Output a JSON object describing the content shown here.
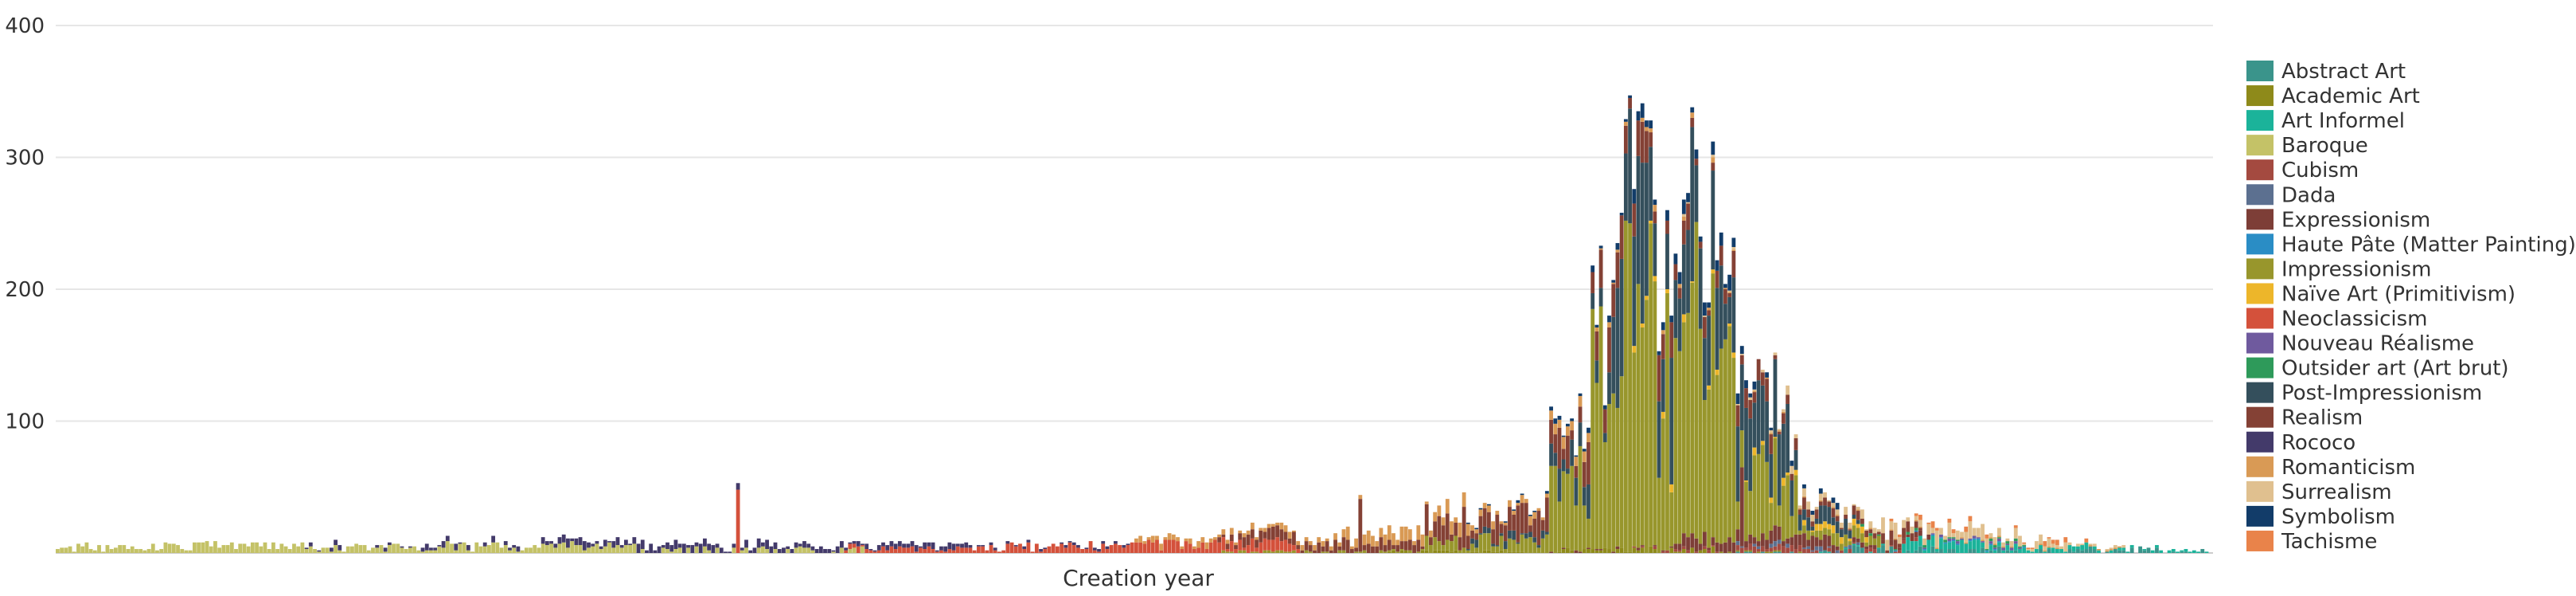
{
  "chart_data": {
    "type": "bar",
    "stacked": true,
    "title": "",
    "xlabel": "Creation year",
    "ylabel": "",
    "ylim": [
      0,
      400
    ],
    "y_ticks": [
      "100",
      "200",
      "300",
      "400"
    ],
    "xlim": [
      1500,
      2019
    ],
    "grid": true,
    "legend_position": "right",
    "series": [
      {
        "name": "Abstract Art",
        "color": "#3a948b",
        "spec": [
          [
            1905,
            1925,
            0.5
          ],
          [
            1925,
            1975,
            2.5
          ],
          [
            1975,
            2019,
            2
          ]
        ]
      },
      {
        "name": "Academic Art",
        "color": "#8e8a1a",
        "spec": [
          [
            1820,
            1860,
            1
          ],
          [
            1860,
            1900,
            2
          ],
          [
            1900,
            1925,
            0.5
          ]
        ]
      },
      {
        "name": "Art Informel",
        "color": "#1bb39a",
        "spec": [
          [
            1925,
            1945,
            0.5
          ],
          [
            1945,
            1965,
            6
          ],
          [
            1965,
            1990,
            3
          ],
          [
            1990,
            2019,
            1
          ]
        ]
      },
      {
        "name": "Baroque",
        "color": "#c4c267",
        "spec": [
          [
            1500,
            1560,
            5
          ],
          [
            1560,
            1590,
            4
          ],
          [
            1590,
            1640,
            5
          ],
          [
            1640,
            1700,
            2
          ]
        ]
      },
      {
        "name": "Cubism",
        "color": "#a44a40",
        "spec": [
          [
            1880,
            1905,
            1
          ],
          [
            1905,
            1925,
            3
          ],
          [
            1925,
            1950,
            1.5
          ]
        ]
      },
      {
        "name": "Dada",
        "color": "#5c7090",
        "spec": [
          [
            1905,
            1935,
            1.5
          ]
        ]
      },
      {
        "name": "Expressionism",
        "color": "#7d3e37",
        "spec": [
          [
            1860,
            1890,
            1
          ],
          [
            1890,
            1930,
            7
          ],
          [
            1930,
            1955,
            2
          ]
        ]
      },
      {
        "name": "Haute Pâte (Matter Painting)",
        "color": "#2a8dc5",
        "spec": [
          [
            1940,
            1975,
            0.5
          ]
        ]
      },
      {
        "name": "Impressionism",
        "color": "#98962c",
        "spec": [
          [
            1780,
            1830,
            1
          ],
          [
            1830,
            1860,
            8
          ],
          [
            1860,
            1870,
            50
          ],
          [
            1870,
            1890,
            160
          ],
          [
            1890,
            1905,
            110
          ],
          [
            1905,
            1920,
            40
          ],
          [
            1920,
            1940,
            6
          ]
        ]
      },
      {
        "name": "Naïve Art (Primitivism)",
        "color": "#edb62a",
        "spec": [
          [
            1880,
            1940,
            2.5
          ]
        ]
      },
      {
        "name": "Neoclassicism",
        "color": "#d4513b",
        "spec": [
          [
            1690,
            1720,
            3
          ],
          [
            1720,
            1760,
            5
          ],
          [
            1760,
            1800,
            6
          ]
        ]
      },
      {
        "name": "Nouveau Réalisme",
        "color": "#6f5a9e",
        "spec": [
          [
            1950,
            1975,
            1
          ]
        ]
      },
      {
        "name": "Outsider art (Art brut)",
        "color": "#2e9a5a",
        "spec": [
          [
            1935,
            1975,
            1
          ]
        ]
      },
      {
        "name": "Post-Impressionism",
        "color": "#344f5c",
        "spec": [
          [
            1840,
            1860,
            4
          ],
          [
            1860,
            1875,
            15
          ],
          [
            1875,
            1900,
            70
          ],
          [
            1900,
            1920,
            40
          ],
          [
            1920,
            1935,
            8
          ]
        ]
      },
      {
        "name": "Realism",
        "color": "#844135",
        "spec": [
          [
            1780,
            1830,
            6
          ],
          [
            1830,
            1860,
            18
          ],
          [
            1860,
            1890,
            20
          ],
          [
            1890,
            1915,
            12
          ],
          [
            1915,
            1950,
            5
          ]
        ]
      },
      {
        "name": "Rococo",
        "color": "#433a6a",
        "spec": [
          [
            1560,
            1620,
            2
          ],
          [
            1620,
            1680,
            4
          ],
          [
            1680,
            1720,
            3
          ],
          [
            1720,
            1760,
            1
          ]
        ]
      },
      {
        "name": "Romanticism",
        "color": "#d99a55",
        "spec": [
          [
            1760,
            1810,
            3
          ],
          [
            1810,
            1840,
            7
          ],
          [
            1840,
            1870,
            5
          ],
          [
            1870,
            1900,
            2
          ],
          [
            1900,
            2000,
            0.5
          ]
        ]
      },
      {
        "name": "Surrealism",
        "color": "#e0c08f",
        "spec": [
          [
            1890,
            1915,
            1
          ],
          [
            1915,
            1940,
            4
          ],
          [
            1940,
            1965,
            8
          ],
          [
            1965,
            1985,
            5
          ],
          [
            1985,
            2000,
            1
          ]
        ]
      },
      {
        "name": "Symbolism",
        "color": "#123c69",
        "spec": [
          [
            1840,
            1860,
            1
          ],
          [
            1860,
            1880,
            3
          ],
          [
            1880,
            1910,
            7
          ],
          [
            1910,
            1930,
            2
          ]
        ]
      },
      {
        "name": "Tachisme",
        "color": "#e9834a",
        "spec": [
          [
            1940,
            1990,
            2
          ]
        ]
      }
    ],
    "annotations": [
      {
        "year": 1664,
        "series": "Neoclassicism",
        "value": 48
      },
      {
        "year": 1814,
        "series": "Realism",
        "value": 40
      },
      {
        "year": 1873,
        "series": "Impressionism",
        "value": 80
      },
      {
        "year": 1874,
        "series": "Impressionism",
        "value": 110
      },
      {
        "year": 1875,
        "series": "Impressionism",
        "value": 120
      },
      {
        "year": 1877,
        "series": "Impressionism",
        "value": 130
      },
      {
        "year": 1882,
        "series": "Impressionism",
        "value": 165
      },
      {
        "year": 1885,
        "series": "Impressionism",
        "value": 200
      },
      {
        "year": 1888,
        "series": "Impressionism",
        "value": 195
      },
      {
        "year": 1893,
        "series": "Impressionism",
        "value": 170
      },
      {
        "year": 1895,
        "series": "Impressionism",
        "value": 240
      },
      {
        "year": 1897,
        "series": "Impressionism",
        "value": 100
      },
      {
        "year": 1898,
        "series": "Impressionism",
        "value": 120
      },
      {
        "year": 1899,
        "series": "Impressionism",
        "value": 200
      },
      {
        "year": 1903,
        "series": "Impressionism",
        "value": 160
      },
      {
        "year": 1904,
        "series": "Impressionism",
        "value": 140
      },
      {
        "year": 1906,
        "series": "Expressionism",
        "value": 60
      }
    ]
  }
}
